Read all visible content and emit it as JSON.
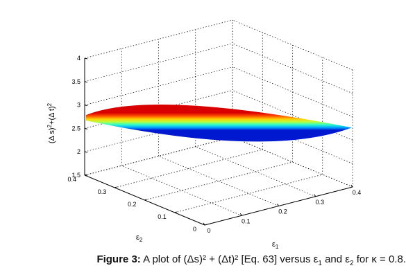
{
  "chart_data": {
    "type": "surface3d",
    "title": "",
    "xlabel": "ε1",
    "ylabel": "ε2",
    "zlabel": "(Δ s)² + (Δ t)²",
    "x_ticks": [
      "0",
      "0.1",
      "0.2",
      "0.3",
      "0.4"
    ],
    "y_ticks": [
      "0",
      "0.1",
      "0.2",
      "0.3",
      "0.4"
    ],
    "z_ticks": [
      "1.5",
      "2",
      "2.5",
      "3",
      "3.5",
      "4"
    ],
    "xlim": [
      0,
      0.4
    ],
    "ylim": [
      0,
      0.4
    ],
    "zlim": [
      1.5,
      4
    ],
    "grid": true,
    "colormap": "jet",
    "surface": {
      "x": [
        0,
        0.1,
        0.2,
        0.3,
        0.4
      ],
      "y": [
        0,
        0.1,
        0.2,
        0.3,
        0.4
      ],
      "z_approx": 2.75,
      "z_range": [
        2.55,
        2.85
      ]
    }
  },
  "caption": {
    "label": "Figure 3:",
    "text_a": "A plot of (Δs)² + (Δt)² [Eq. 63] versus ε",
    "sub1": "1",
    "text_b": " and ε",
    "sub2": "2",
    "text_c": " for κ = 0.8."
  }
}
